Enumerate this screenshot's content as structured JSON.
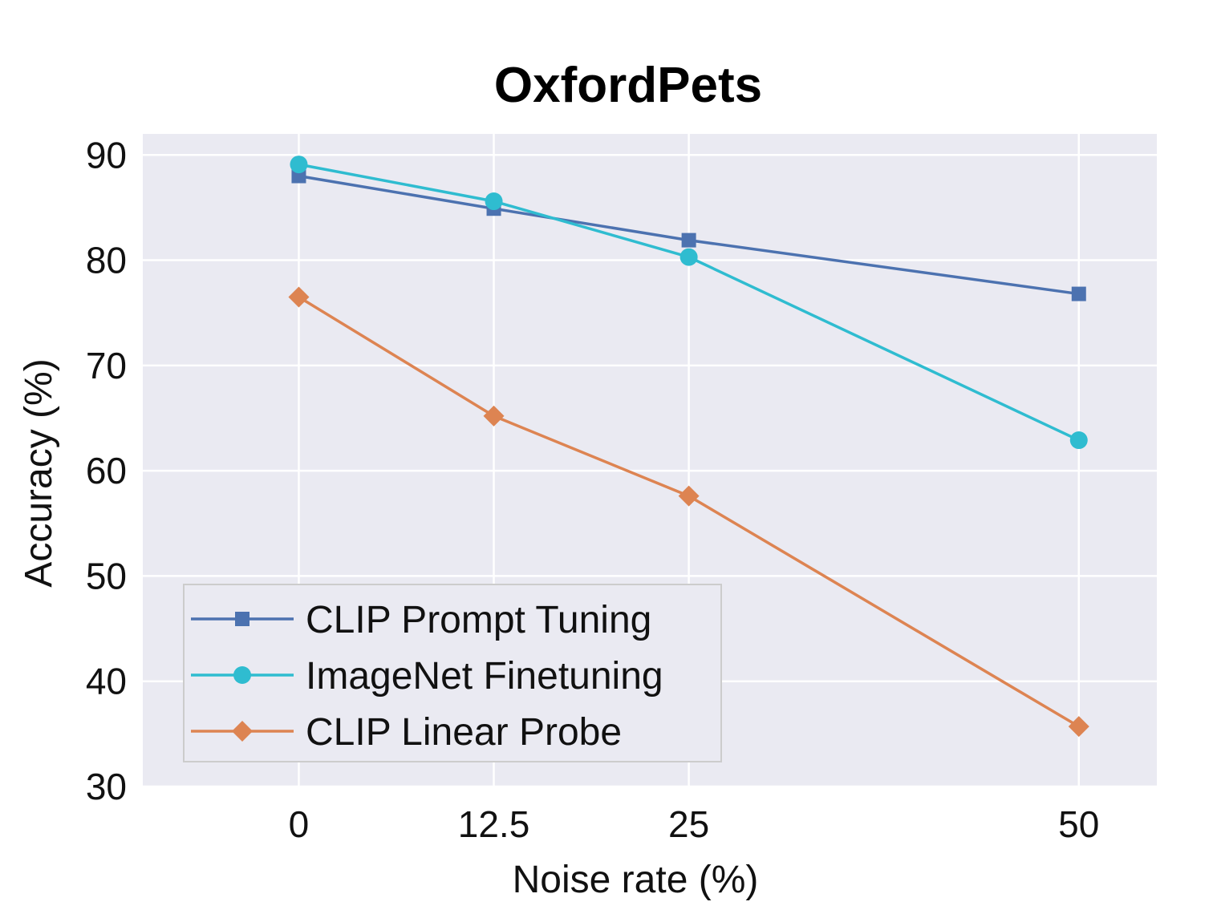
{
  "chart_data": {
    "type": "line",
    "title": "OxfordPets",
    "xlabel": "Noise rate (%)",
    "ylabel": "Accuracy (%)",
    "x": [
      0,
      12.5,
      25,
      50
    ],
    "x_tick_labels": [
      "0",
      "12.5",
      "25",
      "50"
    ],
    "xlim": [
      -10,
      55
    ],
    "ylim": [
      30,
      92
    ],
    "y_ticks": [
      30,
      40,
      50,
      60,
      70,
      80,
      90
    ],
    "grid": true,
    "legend_position": "lower-left",
    "background": "#eaeaf2",
    "series": [
      {
        "name": "CLIP Prompt Tuning",
        "values": [
          88.0,
          84.9,
          81.9,
          76.8
        ],
        "color": "#4c72b0",
        "marker": "square"
      },
      {
        "name": "ImageNet Finetuning",
        "values": [
          89.1,
          85.6,
          80.3,
          62.9
        ],
        "color": "#2fbcd0",
        "marker": "circle"
      },
      {
        "name": "CLIP Linear Probe",
        "values": [
          76.5,
          65.2,
          57.6,
          35.7
        ],
        "color": "#dd8452",
        "marker": "diamond"
      }
    ]
  }
}
